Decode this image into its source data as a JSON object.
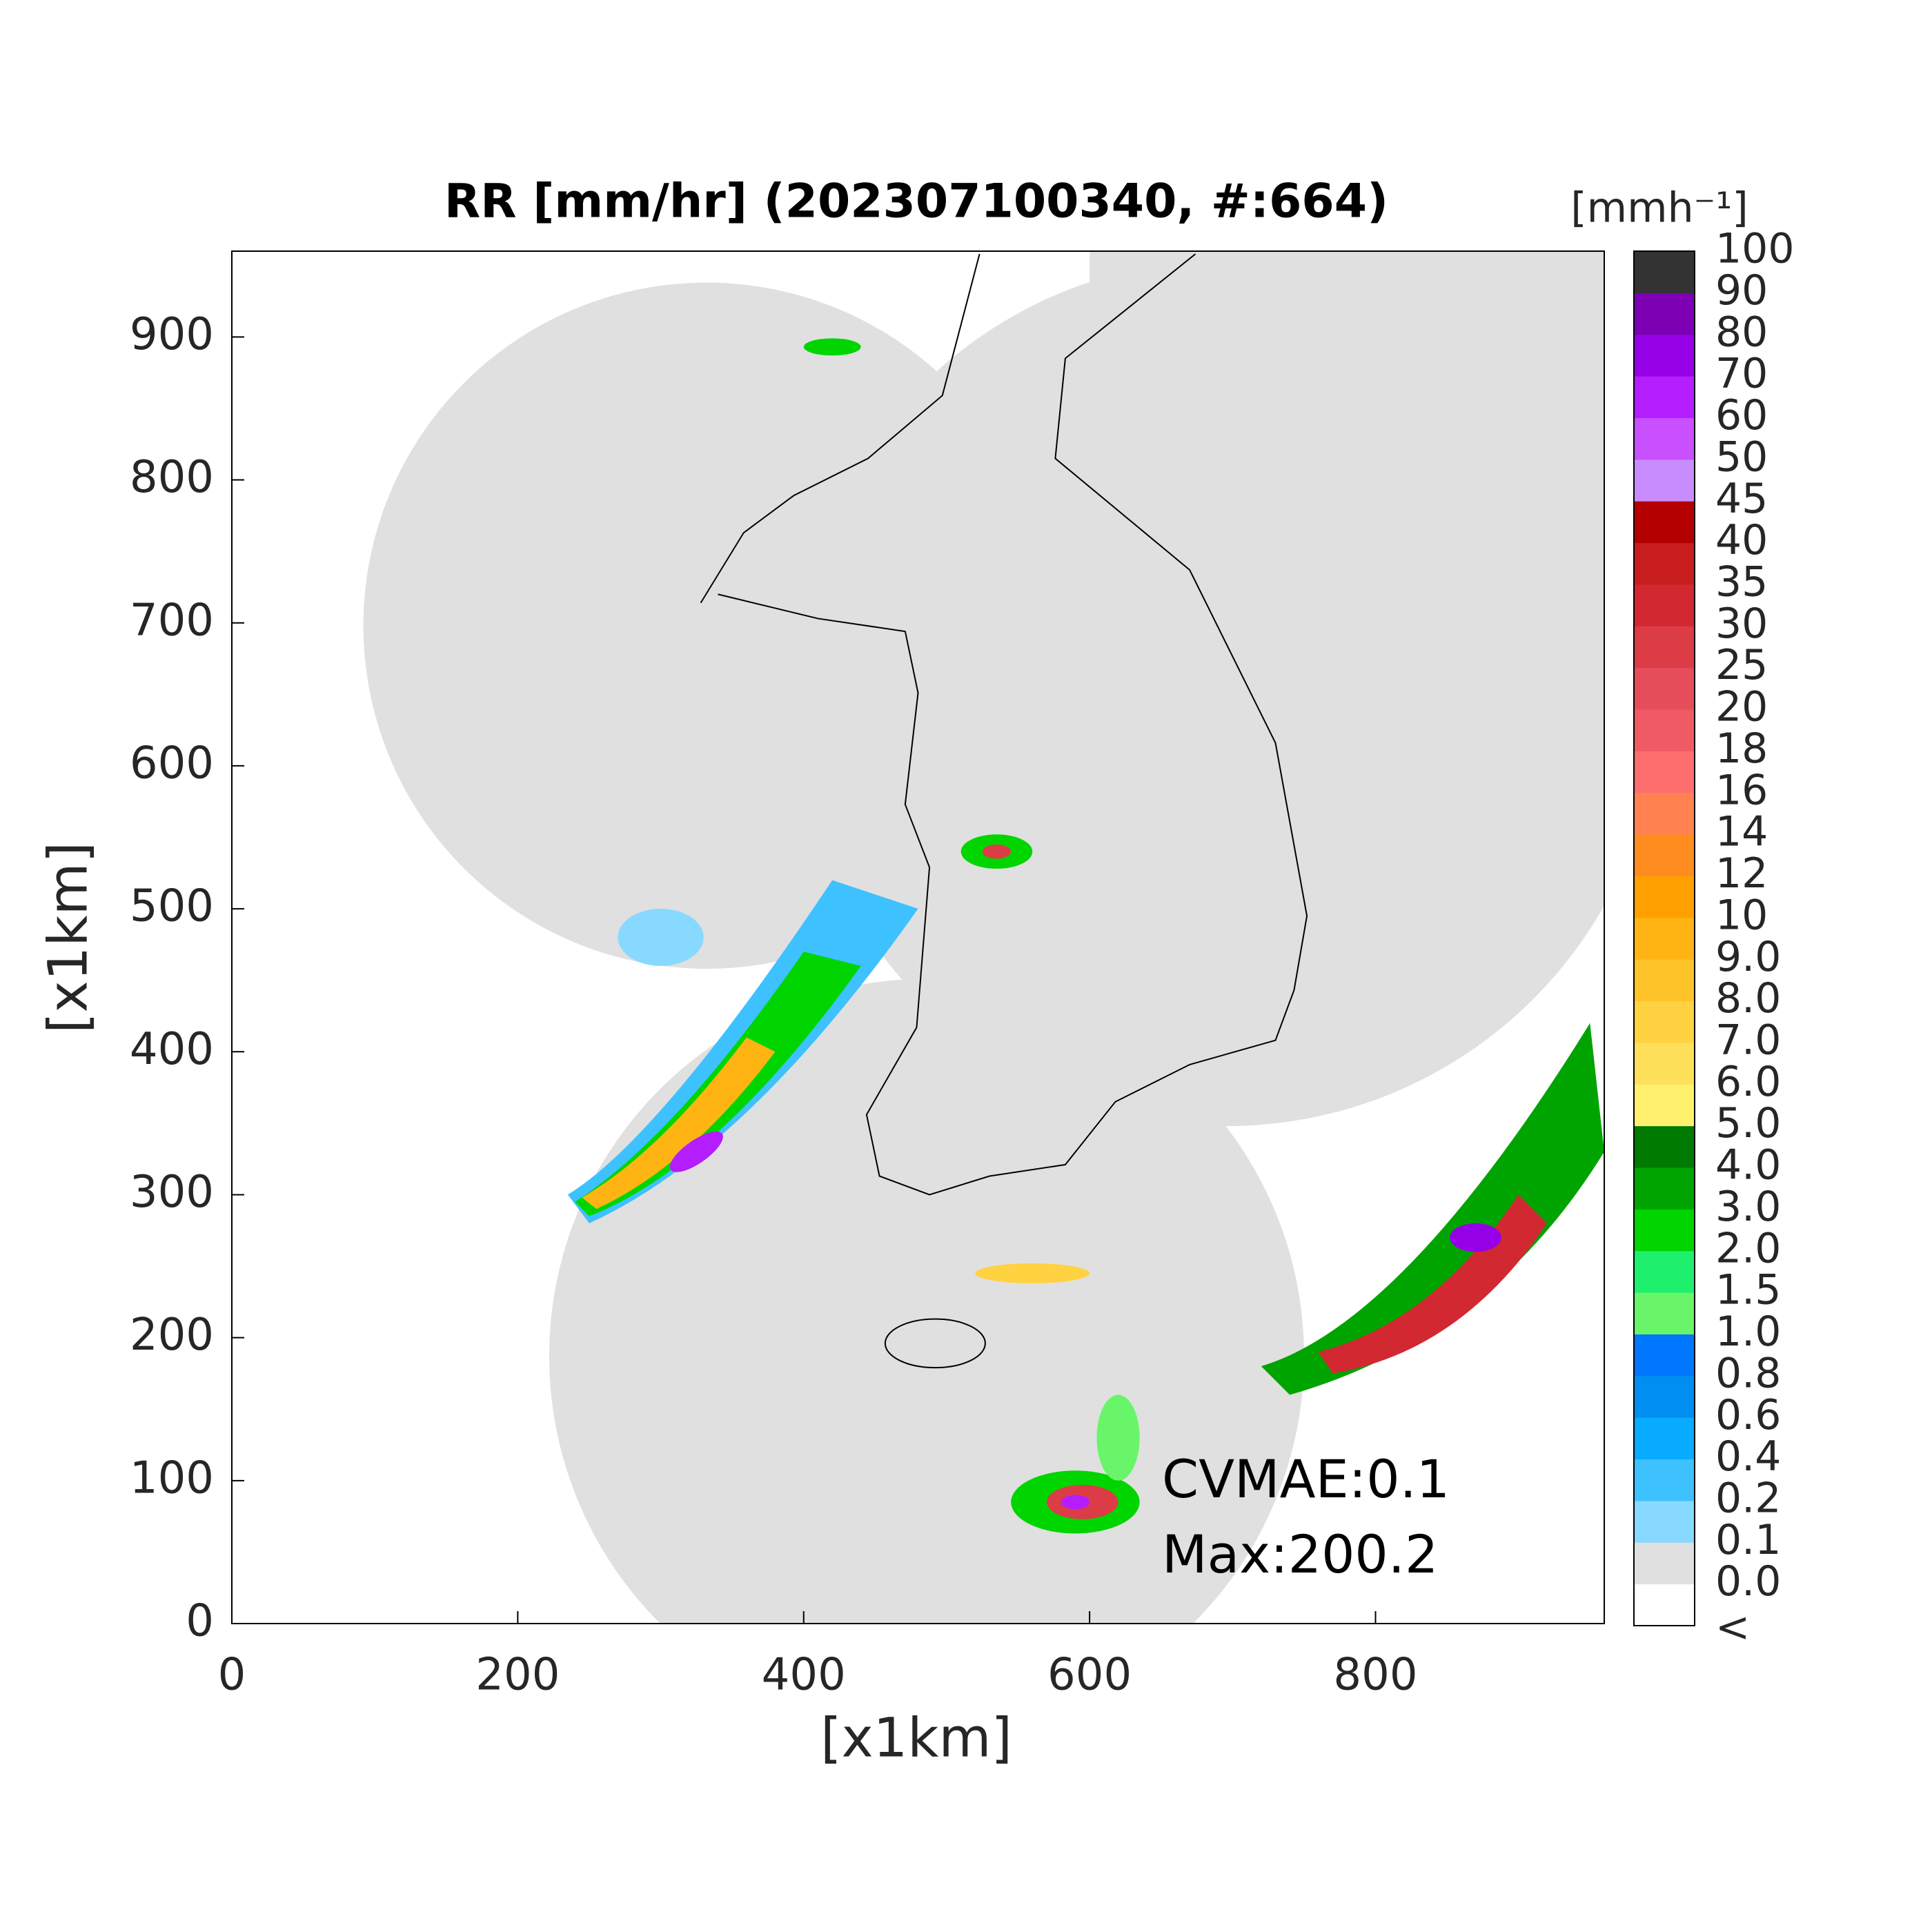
{
  "chart_data": {
    "type": "map",
    "title": "RR [mm/hr] (202307100340, #:664)",
    "xlabel": "[x1km]",
    "ylabel": "[x1km]",
    "xlim": [
      0,
      960
    ],
    "ylim": [
      0,
      960
    ],
    "xticks": [
      0,
      200,
      400,
      600,
      800
    ],
    "yticks": [
      0,
      100,
      200,
      300,
      400,
      500,
      600,
      700,
      800,
      900
    ],
    "annotations": [
      "CVMAE:0.1",
      "Max:200.2"
    ],
    "colorbar": {
      "label": "[mmh⁻¹]",
      "under_label": "<",
      "under_color": "#ffffff",
      "levels": [
        {
          "value": 0,
          "label": "0.0"
        },
        0.1,
        0.2,
        0.4,
        0.6,
        0.8,
        {
          "value": 1,
          "label": "1.0"
        },
        1.5,
        {
          "value": 2,
          "label": "2.0"
        },
        {
          "value": 3,
          "label": "3.0"
        },
        {
          "value": 4,
          "label": "4.0"
        },
        {
          "value": 5,
          "label": "5.0"
        },
        {
          "value": 6,
          "label": "6.0"
        },
        {
          "value": 7,
          "label": "7.0"
        },
        {
          "value": 8,
          "label": "8.0"
        },
        {
          "value": 9,
          "label": "9.0"
        },
        10,
        12,
        14,
        16,
        18,
        20,
        25,
        30,
        35,
        40,
        45,
        50,
        60,
        70,
        80,
        90,
        100
      ],
      "colors": [
        "#e0e0e0",
        "#87d9ff",
        "#3ec1ff",
        "#07abff",
        "#008ff0",
        "#0077ff",
        "#69f569",
        "#1ef06e",
        "#00d500",
        "#00a400",
        "#007a00",
        "#fff06e",
        "#ffe05a",
        "#ffd241",
        "#ffc32a",
        "#ffb414",
        "#ffa000",
        "#ff8c1e",
        "#ff8250",
        "#ff6e6e",
        "#f05a64",
        "#e64d5a",
        "#dc3c46",
        "#d22832",
        "#c81e1e",
        "#b40000",
        "#c88cff",
        "#c850ff",
        "#b41eff",
        "#9600e6",
        "#7d00b4",
        "#333333"
      ]
    }
  }
}
